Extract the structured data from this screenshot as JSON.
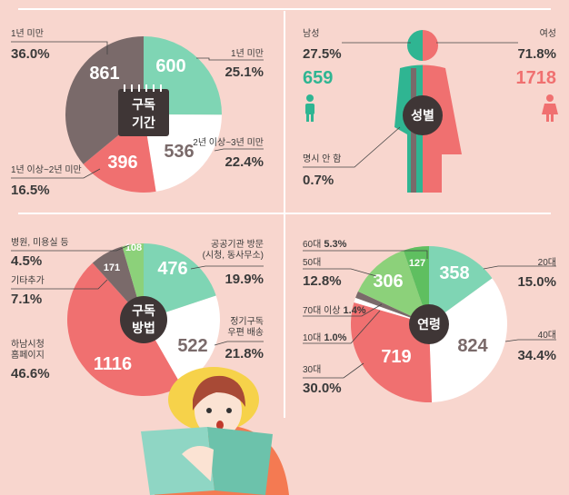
{
  "colors": {
    "background": "#f8d6ce",
    "mint": "#7fd5b4",
    "gray": "#7a6a6a",
    "red": "#f07070",
    "white": "#ffffff",
    "green": "#8cd17a",
    "dark": "#3f3636"
  },
  "chart_data": [
    {
      "type": "pie",
      "center_label": [
        "구독",
        "기간"
      ],
      "slices": [
        {
          "label": "1년 미만",
          "value": 600,
          "percent": "25.1%",
          "color": "#7fd5b4"
        },
        {
          "label": "2년 이상~3년 미만",
          "value": 536,
          "percent": "22.4%",
          "color": "#ffffff"
        },
        {
          "label": "1년 이상~2년 미만",
          "value": 396,
          "percent": "16.5%",
          "color": "#f07070"
        },
        {
          "label": "1년 미만",
          "value": 861,
          "percent": "36.0%",
          "color": "#7a6a6a"
        }
      ]
    },
    {
      "type": "pictogram",
      "center_label": "성별",
      "groups": [
        {
          "label": "남성",
          "value": 659,
          "percent": "27.5%",
          "color": "#2fb592"
        },
        {
          "label": "여성",
          "value": 1718,
          "percent": "71.8%",
          "color": "#f07070"
        },
        {
          "label": "명시 안 함",
          "value": null,
          "percent": "0.7%",
          "color": "#7a6a6a"
        }
      ]
    },
    {
      "type": "pie",
      "center_label": [
        "구독",
        "방법"
      ],
      "slices": [
        {
          "label": "공공기관 방문 (시청, 동사무소)",
          "value": 476,
          "percent": "19.9%",
          "color": "#7fd5b4"
        },
        {
          "label": "정기구독 우편 배송",
          "value": 522,
          "percent": "21.8%",
          "color": "#ffffff"
        },
        {
          "label": "하남시청 홈페이지",
          "value": 1116,
          "percent": "46.6%",
          "color": "#f07070"
        },
        {
          "label": "기타추가",
          "value": 171,
          "percent": "7.1%",
          "color": "#7a6a6a"
        },
        {
          "label": "병원, 미용실 등",
          "value": 108,
          "percent": "4.5%",
          "color": "#8cd17a"
        }
      ]
    },
    {
      "type": "pie",
      "center_label": "연령",
      "slices": [
        {
          "label": "20대",
          "value": 358,
          "percent": "15.0%",
          "color": "#7fd5b4"
        },
        {
          "label": "40대",
          "value": 824,
          "percent": "34.4%",
          "color": "#ffffff"
        },
        {
          "label": "30대",
          "value": 719,
          "percent": "30.0%",
          "color": "#f07070"
        },
        {
          "label": "10대",
          "value": 24,
          "percent": "1.0%",
          "color": "#ffffff"
        },
        {
          "label": "70대 이상",
          "value": 33,
          "percent": "1.4%",
          "color": "#7a6a6a"
        },
        {
          "label": "50대",
          "value": 306,
          "percent": "12.8%",
          "color": "#8cd17a"
        },
        {
          "label": "60대",
          "value": 127,
          "percent": "5.3%",
          "color": "#5fbf60"
        }
      ]
    }
  ]
}
